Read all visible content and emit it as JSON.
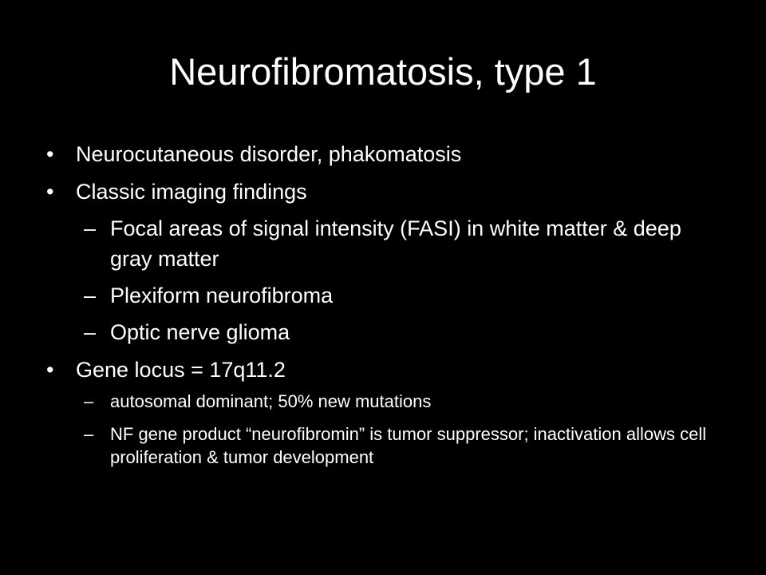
{
  "slide": {
    "title": "Neurofibromatosis, type 1",
    "bullets": [
      {
        "marker": "•",
        "text": "Neurocutaneous disorder, phakomatosis"
      },
      {
        "marker": "•",
        "text": "Classic imaging findings"
      },
      {
        "marker": "–",
        "text": "Focal areas of signal intensity (FASI) in white matter & deep gray matter"
      },
      {
        "marker": "–",
        "text": "Plexiform neurofibroma"
      },
      {
        "marker": "–",
        "text": "Optic nerve glioma"
      },
      {
        "marker": "•",
        "text": "Gene locus = 17q11.2"
      },
      {
        "marker": "–",
        "text": "autosomal dominant; 50% new mutations"
      },
      {
        "marker": "–",
        "text": "NF gene product “neurofibromin” is tumor suppressor; inactivation allows cell proliferation & tumor development"
      }
    ]
  },
  "colors": {
    "background": "#000000",
    "text": "#ffffff"
  }
}
